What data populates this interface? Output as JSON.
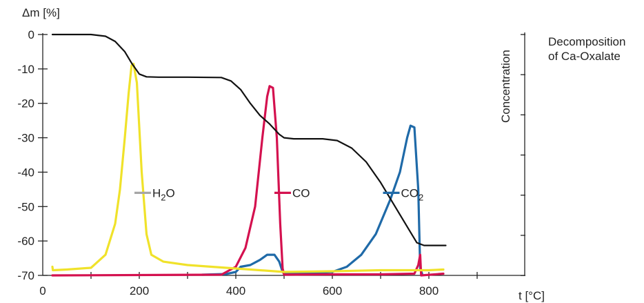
{
  "chart_data": {
    "type": "line",
    "y_axis_title": "Δm [%]",
    "x_axis_title": "t [°C]",
    "right_axis_title": "Concentration",
    "annotation_lines": [
      "Decomposition",
      "of Ca-Oxalate"
    ],
    "x_ticks": [
      0,
      200,
      400,
      600,
      800
    ],
    "y_ticks": [
      0,
      -10,
      -20,
      -30,
      -40,
      -50,
      -60,
      -70
    ],
    "xlim": [
      0,
      900
    ],
    "ylim": [
      -70,
      0
    ],
    "grid": false,
    "colors": {
      "mass": "#111111",
      "h2o_legend": "#a6a6a6",
      "h2o_curve": "#f0e22a",
      "co": "#d4114f",
      "co2": "#1f6aa8",
      "axis": "#222222"
    },
    "series": [
      {
        "key": "mass",
        "values": [
          [
            20,
            0
          ],
          [
            100,
            0
          ],
          [
            130,
            -0.5
          ],
          [
            150,
            -2
          ],
          [
            170,
            -5
          ],
          [
            185,
            -8.5
          ],
          [
            200,
            -11.5
          ],
          [
            215,
            -12.3
          ],
          [
            240,
            -12.4
          ],
          [
            300,
            -12.4
          ],
          [
            370,
            -12.5
          ],
          [
            390,
            -13.5
          ],
          [
            410,
            -16
          ],
          [
            430,
            -20
          ],
          [
            450,
            -23.5
          ],
          [
            470,
            -26
          ],
          [
            490,
            -29
          ],
          [
            500,
            -30
          ],
          [
            520,
            -30.3
          ],
          [
            580,
            -30.3
          ],
          [
            610,
            -30.8
          ],
          [
            640,
            -33
          ],
          [
            670,
            -37
          ],
          [
            700,
            -43
          ],
          [
            730,
            -50
          ],
          [
            760,
            -57
          ],
          [
            775,
            -60.5
          ],
          [
            790,
            -61.3
          ],
          [
            835,
            -61.3
          ]
        ]
      },
      {
        "key": "h2o",
        "name": "H₂O",
        "values": [
          [
            20,
            -67.5
          ],
          [
            21,
            -68.5
          ],
          [
            50,
            -68.3
          ],
          [
            100,
            -67.8
          ],
          [
            130,
            -64
          ],
          [
            150,
            -55
          ],
          [
            160,
            -45
          ],
          [
            170,
            -30
          ],
          [
            178,
            -17
          ],
          [
            184,
            -9
          ],
          [
            188,
            -8.5
          ],
          [
            195,
            -14
          ],
          [
            205,
            -40
          ],
          [
            215,
            -58
          ],
          [
            225,
            -64
          ],
          [
            250,
            -66
          ],
          [
            300,
            -67
          ],
          [
            400,
            -68
          ],
          [
            500,
            -69
          ],
          [
            600,
            -68.8
          ],
          [
            700,
            -68.5
          ],
          [
            800,
            -68.5
          ],
          [
            830,
            -68.3
          ]
        ]
      },
      {
        "key": "co",
        "name": "CO",
        "values": [
          [
            20,
            -70
          ],
          [
            370,
            -69.8
          ],
          [
            400,
            -67.5
          ],
          [
            420,
            -62
          ],
          [
            440,
            -50
          ],
          [
            455,
            -30
          ],
          [
            465,
            -18
          ],
          [
            470,
            -15
          ],
          [
            477,
            -15.5
          ],
          [
            485,
            -30
          ],
          [
            492,
            -55
          ],
          [
            497,
            -68
          ],
          [
            500,
            -69.8
          ],
          [
            600,
            -69.7
          ],
          [
            700,
            -69.7
          ],
          [
            770,
            -69.5
          ],
          [
            778,
            -67
          ],
          [
            782,
            -64
          ],
          [
            784,
            -70
          ],
          [
            830,
            -69.5
          ]
        ]
      },
      {
        "key": "co2",
        "name": "CO₂",
        "values": [
          [
            330,
            -69.8
          ],
          [
            380,
            -69.6
          ],
          [
            400,
            -69
          ],
          [
            410,
            -67.5
          ],
          [
            430,
            -67
          ],
          [
            450,
            -65.5
          ],
          [
            465,
            -64
          ],
          [
            480,
            -64
          ],
          [
            490,
            -66
          ],
          [
            497,
            -69
          ],
          [
            500,
            -69.5
          ],
          [
            550,
            -69.3
          ],
          [
            600,
            -69
          ],
          [
            630,
            -67.5
          ],
          [
            660,
            -64
          ],
          [
            690,
            -58
          ],
          [
            720,
            -48
          ],
          [
            740,
            -40
          ],
          [
            755,
            -30
          ],
          [
            762,
            -26.5
          ],
          [
            770,
            -27
          ],
          [
            778,
            -45
          ],
          [
            782,
            -68
          ],
          [
            786,
            -69.5
          ]
        ]
      }
    ],
    "legend_entries": [
      {
        "name": "H₂O",
        "color": "#a6a6a6",
        "anchor": [
          190,
          -46
        ]
      },
      {
        "name": "CO",
        "color": "#d4114f",
        "anchor": [
          480,
          -46
        ]
      },
      {
        "name": "CO₂",
        "color": "#1f6aa8",
        "anchor": [
          705,
          -46
        ]
      }
    ]
  }
}
